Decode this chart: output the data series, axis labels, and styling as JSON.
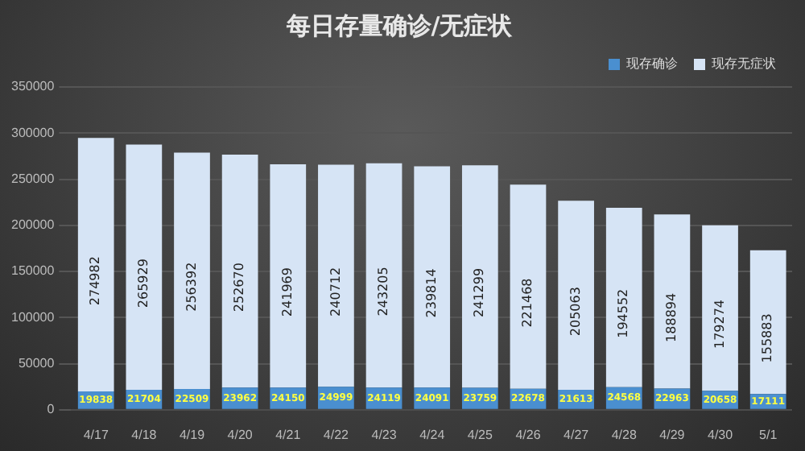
{
  "chart_data": {
    "type": "bar",
    "title": "每日存量确诊/无症状",
    "stacked": true,
    "data_labels": true,
    "legend": "top right",
    "grid": "y",
    "categories": [
      "4/17",
      "4/18",
      "4/19",
      "4/20",
      "4/21",
      "4/22",
      "4/23",
      "4/24",
      "4/25",
      "4/26",
      "4/27",
      "4/28",
      "4/29",
      "4/30",
      "5/1"
    ],
    "series": [
      {
        "name": "现存确诊",
        "color": "#4a8fd0",
        "values": [
          19838,
          21704,
          22509,
          23962,
          24150,
          24999,
          24119,
          24091,
          23759,
          22678,
          21613,
          24568,
          22963,
          20658,
          17111
        ]
      },
      {
        "name": "现存无症状",
        "color": "#d6e4f5",
        "values": [
          274982,
          265929,
          256392,
          252670,
          241969,
          240712,
          243205,
          239814,
          241299,
          221468,
          205063,
          194552,
          188894,
          179274,
          155883
        ]
      }
    ],
    "ylim": [
      0,
      350000
    ],
    "yticks": [
      0,
      50000,
      100000,
      150000,
      200000,
      250000,
      300000,
      350000
    ]
  }
}
